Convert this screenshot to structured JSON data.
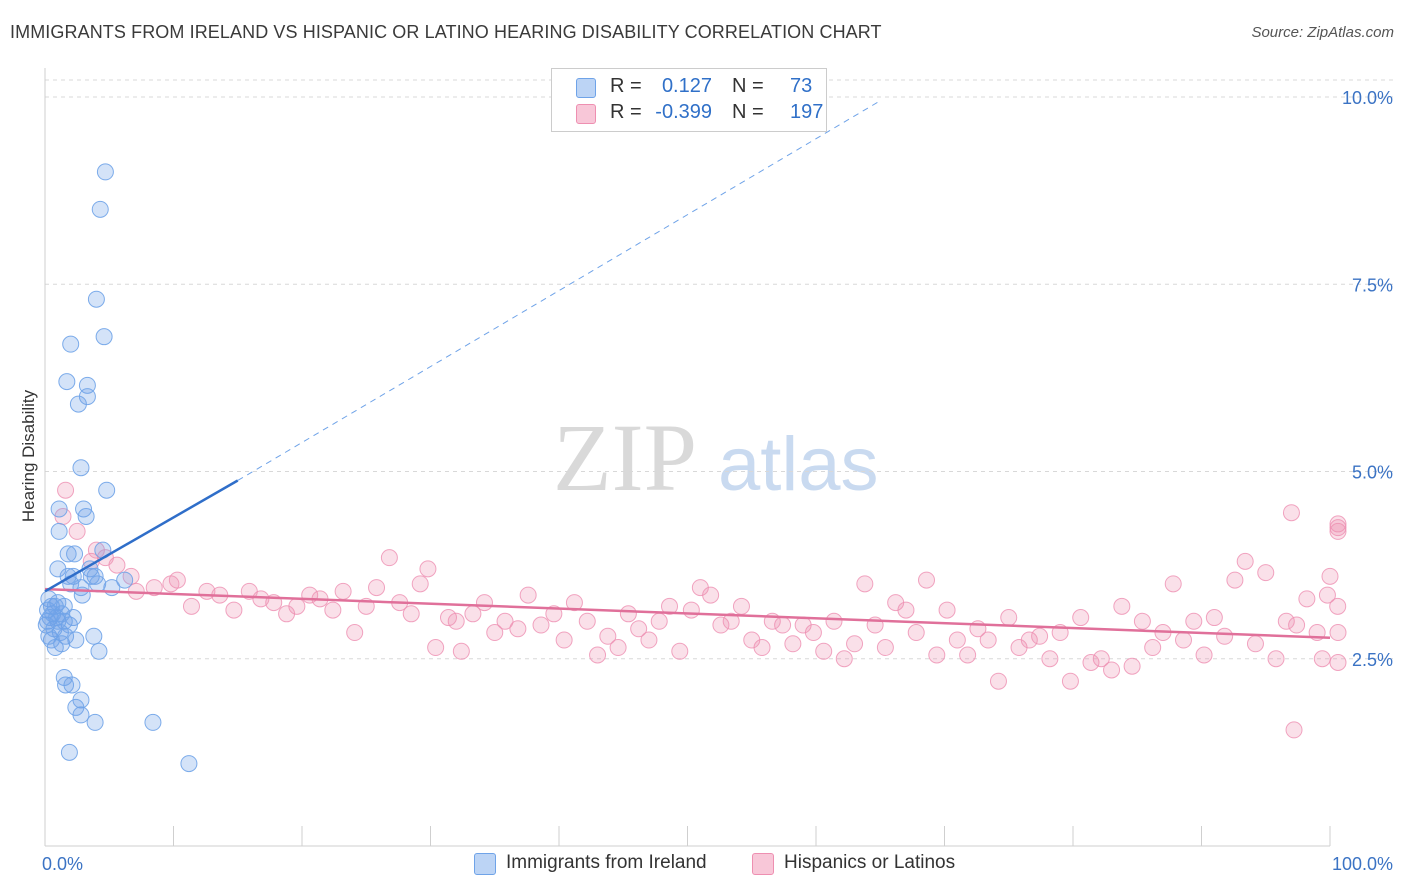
{
  "title": "IMMIGRANTS FROM IRELAND VS HISPANIC OR LATINO HEARING DISABILITY CORRELATION CHART",
  "source": "Source: ZipAtlas.com",
  "watermark": {
    "zip": "ZIP",
    "atlas": "atlas"
  },
  "legend": {
    "r_label": "R =",
    "n_label": "N =",
    "rows": [
      {
        "r": "0.127",
        "n": "73"
      },
      {
        "r": "-0.399",
        "n": "197"
      }
    ]
  },
  "chart_data": {
    "type": "scatter",
    "xlabel": "",
    "ylabel": "Hearing Disability",
    "xlim": [
      0,
      100
    ],
    "ylim": [
      0,
      10.5
    ],
    "x_tick_labels": [
      "0.0%",
      "100.0%"
    ],
    "y_ticks": [
      {
        "value": 2.5,
        "label": "2.5%"
      },
      {
        "value": 5.0,
        "label": "5.0%"
      },
      {
        "value": 7.5,
        "label": "7.5%"
      },
      {
        "value": 10.0,
        "label": "10.0%"
      }
    ],
    "grid": "horizontal dashed",
    "colors": {
      "ireland": "#6fa3e8",
      "ireland_line": "#2f6ec9",
      "hispanic": "#ee8fb1",
      "hispanic_line": "#e0709a",
      "axis_text": "#3b73c4"
    },
    "series": [
      {
        "name": "Immigrants from Ireland",
        "color": "#6fa3e8",
        "points": [
          [
            4.7,
            9.0
          ],
          [
            4.3,
            8.5
          ],
          [
            4.0,
            7.3
          ],
          [
            4.6,
            6.8
          ],
          [
            2.0,
            6.7
          ],
          [
            1.7,
            6.2
          ],
          [
            3.3,
            6.15
          ],
          [
            3.3,
            6.0
          ],
          [
            2.6,
            5.9
          ],
          [
            2.8,
            5.05
          ],
          [
            4.8,
            4.75
          ],
          [
            3.0,
            4.5
          ],
          [
            1.1,
            4.5
          ],
          [
            3.2,
            4.4
          ],
          [
            1.1,
            4.2
          ],
          [
            4.5,
            3.95
          ],
          [
            1.8,
            3.9
          ],
          [
            2.3,
            3.9
          ],
          [
            1.0,
            3.7
          ],
          [
            3.5,
            3.7
          ],
          [
            3.6,
            3.6
          ],
          [
            1.8,
            3.6
          ],
          [
            2.2,
            3.6
          ],
          [
            3.9,
            3.6
          ],
          [
            6.2,
            3.55
          ],
          [
            2.0,
            3.5
          ],
          [
            2.8,
            3.45
          ],
          [
            4.1,
            3.5
          ],
          [
            5.2,
            3.45
          ],
          [
            2.9,
            3.35
          ],
          [
            0.3,
            3.3
          ],
          [
            1.0,
            3.25
          ],
          [
            0.5,
            3.2
          ],
          [
            0.8,
            3.2
          ],
          [
            1.5,
            3.2
          ],
          [
            0.2,
            3.15
          ],
          [
            0.6,
            3.1
          ],
          [
            1.3,
            3.1
          ],
          [
            0.4,
            3.05
          ],
          [
            2.2,
            3.05
          ],
          [
            0.9,
            3.05
          ],
          [
            0.2,
            3.0
          ],
          [
            1.0,
            3.0
          ],
          [
            1.5,
            3.0
          ],
          [
            0.1,
            2.95
          ],
          [
            1.9,
            2.95
          ],
          [
            0.7,
            2.9
          ],
          [
            1.2,
            2.85
          ],
          [
            0.3,
            2.8
          ],
          [
            1.6,
            2.8
          ],
          [
            3.8,
            2.8
          ],
          [
            0.5,
            2.75
          ],
          [
            2.4,
            2.75
          ],
          [
            1.3,
            2.7
          ],
          [
            0.8,
            2.65
          ],
          [
            4.2,
            2.6
          ],
          [
            1.5,
            2.25
          ],
          [
            1.6,
            2.15
          ],
          [
            2.1,
            2.15
          ],
          [
            2.8,
            1.95
          ],
          [
            2.4,
            1.85
          ],
          [
            2.8,
            1.75
          ],
          [
            3.9,
            1.65
          ],
          [
            8.4,
            1.65
          ],
          [
            1.9,
            1.25
          ],
          [
            11.2,
            1.1
          ]
        ],
        "trend": {
          "x0": 0.0,
          "y0": 3.4,
          "x1": 15.0,
          "y1": 4.88,
          "dash_to_x": 65.0,
          "dash_to_y": 9.95
        }
      },
      {
        "name": "Hispanics or Latinos",
        "color": "#ee8fb1",
        "points": [
          [
            1.6,
            4.75
          ],
          [
            1.4,
            4.4
          ],
          [
            2.5,
            4.2
          ],
          [
            4.0,
            3.95
          ],
          [
            4.7,
            3.85
          ],
          [
            3.6,
            3.8
          ],
          [
            5.6,
            3.75
          ],
          [
            6.7,
            3.6
          ],
          [
            7.1,
            3.4
          ],
          [
            8.5,
            3.45
          ],
          [
            9.8,
            3.5
          ],
          [
            10.3,
            3.55
          ],
          [
            11.4,
            3.2
          ],
          [
            12.6,
            3.4
          ],
          [
            13.6,
            3.35
          ],
          [
            14.7,
            3.15
          ],
          [
            15.9,
            3.4
          ],
          [
            16.8,
            3.3
          ],
          [
            17.8,
            3.25
          ],
          [
            18.8,
            3.1
          ],
          [
            19.6,
            3.2
          ],
          [
            20.6,
            3.35
          ],
          [
            21.4,
            3.3
          ],
          [
            22.4,
            3.15
          ],
          [
            23.2,
            3.4
          ],
          [
            24.1,
            2.85
          ],
          [
            25.0,
            3.2
          ],
          [
            25.8,
            3.45
          ],
          [
            26.8,
            3.85
          ],
          [
            27.6,
            3.25
          ],
          [
            28.5,
            3.1
          ],
          [
            29.2,
            3.5
          ],
          [
            29.8,
            3.7
          ],
          [
            30.4,
            2.65
          ],
          [
            31.4,
            3.05
          ],
          [
            32.4,
            2.6
          ],
          [
            32.0,
            3.0
          ],
          [
            33.3,
            3.1
          ],
          [
            34.2,
            3.25
          ],
          [
            35.0,
            2.85
          ],
          [
            35.8,
            3.0
          ],
          [
            36.8,
            2.9
          ],
          [
            37.6,
            3.35
          ],
          [
            38.6,
            2.95
          ],
          [
            39.6,
            3.1
          ],
          [
            40.4,
            2.75
          ],
          [
            41.2,
            3.25
          ],
          [
            42.2,
            3.0
          ],
          [
            43.0,
            2.55
          ],
          [
            43.8,
            2.8
          ],
          [
            44.6,
            2.65
          ],
          [
            45.4,
            3.1
          ],
          [
            46.2,
            2.9
          ],
          [
            47.0,
            2.75
          ],
          [
            47.8,
            3.0
          ],
          [
            48.6,
            3.2
          ],
          [
            49.4,
            2.6
          ],
          [
            50.3,
            3.15
          ],
          [
            51.0,
            3.45
          ],
          [
            51.8,
            3.35
          ],
          [
            52.6,
            2.95
          ],
          [
            53.4,
            3.0
          ],
          [
            54.2,
            3.2
          ],
          [
            55.0,
            2.75
          ],
          [
            55.8,
            2.65
          ],
          [
            56.6,
            3.0
          ],
          [
            57.4,
            2.95
          ],
          [
            58.2,
            2.7
          ],
          [
            59.0,
            2.95
          ],
          [
            59.8,
            2.85
          ],
          [
            60.6,
            2.6
          ],
          [
            61.4,
            3.0
          ],
          [
            62.2,
            2.5
          ],
          [
            63.0,
            2.7
          ],
          [
            63.8,
            3.5
          ],
          [
            64.6,
            2.95
          ],
          [
            65.4,
            2.65
          ],
          [
            66.2,
            3.25
          ],
          [
            67.0,
            3.15
          ],
          [
            67.8,
            2.85
          ],
          [
            68.6,
            3.55
          ],
          [
            69.4,
            2.55
          ],
          [
            70.2,
            3.15
          ],
          [
            71.0,
            2.75
          ],
          [
            71.8,
            2.55
          ],
          [
            72.6,
            2.9
          ],
          [
            73.4,
            2.75
          ],
          [
            74.2,
            2.2
          ],
          [
            75.0,
            3.05
          ],
          [
            75.8,
            2.65
          ],
          [
            76.6,
            2.75
          ],
          [
            77.4,
            2.8
          ],
          [
            78.2,
            2.5
          ],
          [
            79.0,
            2.85
          ],
          [
            79.8,
            2.2
          ],
          [
            80.6,
            3.05
          ],
          [
            81.4,
            2.45
          ],
          [
            82.2,
            2.5
          ],
          [
            83.0,
            2.35
          ],
          [
            83.8,
            3.2
          ],
          [
            84.6,
            2.4
          ],
          [
            85.4,
            3.0
          ],
          [
            86.2,
            2.65
          ],
          [
            87.0,
            2.85
          ],
          [
            87.8,
            3.5
          ],
          [
            88.6,
            2.75
          ],
          [
            89.4,
            3.0
          ],
          [
            90.2,
            2.55
          ],
          [
            91.0,
            3.05
          ],
          [
            91.8,
            2.8
          ],
          [
            92.6,
            3.55
          ],
          [
            93.4,
            3.8
          ],
          [
            94.2,
            2.7
          ],
          [
            95.0,
            3.65
          ],
          [
            95.8,
            2.5
          ],
          [
            96.6,
            3.0
          ],
          [
            97.4,
            2.95
          ],
          [
            98.2,
            3.3
          ],
          [
            99.0,
            2.85
          ],
          [
            99.8,
            3.35
          ],
          [
            100.0,
            3.6
          ],
          [
            100.6,
            3.2
          ],
          [
            101.4,
            4.2
          ],
          [
            102.2,
            4.3
          ],
          [
            102.6,
            4.25
          ],
          [
            97.0,
            4.45
          ],
          [
            97.2,
            1.55
          ],
          [
            102.0,
            2.85
          ],
          [
            101.0,
            2.45
          ],
          [
            99.4,
            2.5
          ]
        ],
        "trend": {
          "x0": 0.0,
          "y0": 3.43,
          "x1": 100.0,
          "y1": 2.78
        }
      }
    ]
  },
  "bottom_legend": [
    {
      "label": "Immigrants from Ireland"
    },
    {
      "label": "Hispanics or Latinos"
    }
  ]
}
